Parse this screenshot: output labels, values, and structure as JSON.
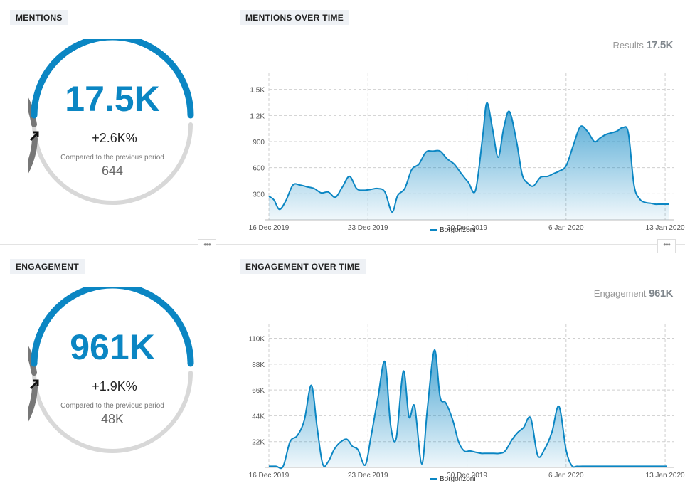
{
  "mentions": {
    "label": "MENTIONS",
    "value": "17.5K",
    "delta": "+2.6K%",
    "compared_text": "Compared to the previous period",
    "previous": "644",
    "accent": "#0b86c3"
  },
  "mentions_over_time": {
    "label": "MENTIONS OVER TIME",
    "result_label": "Results",
    "result_value": "17.5K",
    "legend": "Borgonzoni"
  },
  "engagement": {
    "label": "ENGAGEMENT",
    "value": "961K",
    "delta": "+1.9K%",
    "compared_text": "Compared to the previous period",
    "previous": "48K",
    "accent": "#0b86c3"
  },
  "engagement_over_time": {
    "label": "ENGAGEMENT OVER TIME",
    "result_label": "Engagement",
    "result_value": "961K",
    "legend": "Borgonzoni"
  },
  "more_icon": "ellipsis-icon",
  "chart_data": [
    {
      "type": "area",
      "title": "",
      "xlabel": "",
      "ylabel": "",
      "x_tick_labels": [
        "16 Dec 2019",
        "23 Dec 2019",
        "30 Dec 2019",
        "6 Jan 2020",
        "13 Jan 2020"
      ],
      "x_tick_days": [
        0,
        7,
        14,
        21,
        28
      ],
      "y_tick_labels": [
        "300",
        "600",
        "900",
        "1.2K",
        "1.5K"
      ],
      "y_ticks": [
        300,
        600,
        900,
        1200,
        1500
      ],
      "ylim": [
        0,
        1620
      ],
      "xlim": [
        0,
        28.6
      ],
      "grid": true,
      "legend_position": "bottom-center",
      "color": "#0b86c3",
      "series": [
        {
          "name": "Borgonzoni",
          "x": [
            0,
            0.35,
            0.75,
            1.2,
            1.7,
            2.2,
            2.7,
            3.2,
            3.7,
            4.2,
            4.7,
            5.2,
            5.7,
            6.2,
            6.7,
            7.2,
            7.7,
            8.2,
            8.7,
            9.1,
            9.6,
            10.1,
            10.6,
            11.1,
            11.6,
            12.1,
            12.6,
            13.1,
            13.6,
            14.1,
            14.6,
            15.1,
            15.4,
            15.8,
            16.2,
            16.6,
            17.0,
            17.5,
            17.9,
            18.3,
            18.7,
            19.2,
            19.7,
            20.1,
            20.5,
            21.0,
            21.5,
            22.0,
            22.5,
            23.0,
            23.4,
            23.8,
            24.2,
            24.6,
            25.0,
            25.4,
            25.8,
            26.2,
            26.6,
            27.0,
            27.3,
            27.6,
            27.9,
            28.3
          ],
          "values": [
            270,
            230,
            120,
            220,
            400,
            400,
            380,
            360,
            310,
            320,
            260,
            380,
            500,
            360,
            340,
            350,
            360,
            320,
            90,
            280,
            360,
            580,
            640,
            780,
            790,
            790,
            700,
            640,
            530,
            430,
            340,
            950,
            1345,
            1050,
            720,
            1060,
            1245,
            900,
            520,
            420,
            390,
            490,
            500,
            530,
            560,
            620,
            850,
            1070,
            1020,
            900,
            940,
            980,
            1000,
            1020,
            1060,
            1000,
            400,
            240,
            200,
            190,
            180,
            180,
            180,
            180
          ]
        }
      ]
    },
    {
      "type": "area",
      "title": "",
      "xlabel": "",
      "ylabel": "",
      "x_tick_labels": [
        "16 Dec 2019",
        "23 Dec 2019",
        "30 Dec 2019",
        "6 Jan 2020",
        "13 Jan 2020"
      ],
      "x_tick_days": [
        0,
        7,
        14,
        21,
        28
      ],
      "y_tick_labels": [
        "22K",
        "44K",
        "66K",
        "88K",
        "110K"
      ],
      "y_ticks": [
        22000,
        44000,
        66000,
        88000,
        110000
      ],
      "ylim": [
        0,
        117000
      ],
      "xlim": [
        0,
        28.6
      ],
      "grid": true,
      "legend_position": "bottom-center",
      "color": "#0b86c3",
      "series": [
        {
          "name": "Borgonzoni",
          "x": [
            0,
            0.5,
            1.0,
            1.5,
            2.0,
            2.5,
            3.0,
            3.4,
            3.8,
            4.2,
            4.6,
            5.0,
            5.5,
            5.9,
            6.3,
            6.8,
            7.2,
            7.7,
            8.2,
            8.6,
            9.0,
            9.5,
            9.9,
            10.3,
            10.8,
            11.2,
            11.7,
            12.1,
            12.5,
            13.0,
            13.4,
            13.8,
            14.2,
            14.6,
            15.0,
            15.3,
            15.6,
            15.9,
            16.3,
            16.7,
            17.2,
            17.6,
            18.0,
            18.5,
            19.0,
            19.5,
            20.0,
            20.5,
            21.0,
            21.4,
            21.8,
            22.3,
            22.7,
            23.1,
            23.6,
            24.0,
            24.5,
            24.9,
            25.3,
            25.7,
            26.1,
            26.5,
            26.9,
            27.3,
            27.7,
            28.1
          ],
          "values": [
            1000,
            1000,
            800,
            22000,
            27000,
            40000,
            70000,
            35000,
            3000,
            5000,
            15000,
            21000,
            24000,
            18000,
            15000,
            2000,
            25000,
            59000,
            90000,
            36000,
            25000,
            82000,
            43000,
            52000,
            3000,
            50000,
            100000,
            60000,
            55000,
            40000,
            22000,
            14000,
            14000,
            13000,
            12000,
            12000,
            12000,
            12000,
            12000,
            14000,
            24000,
            30000,
            34000,
            42000,
            10000,
            16000,
            30000,
            52000,
            15000,
            1500,
            1000,
            1000,
            1000,
            1000,
            1000,
            1000,
            1000,
            1000,
            1000,
            1000,
            1000,
            1000,
            1000,
            1000,
            1000,
            1000
          ]
        }
      ]
    }
  ]
}
